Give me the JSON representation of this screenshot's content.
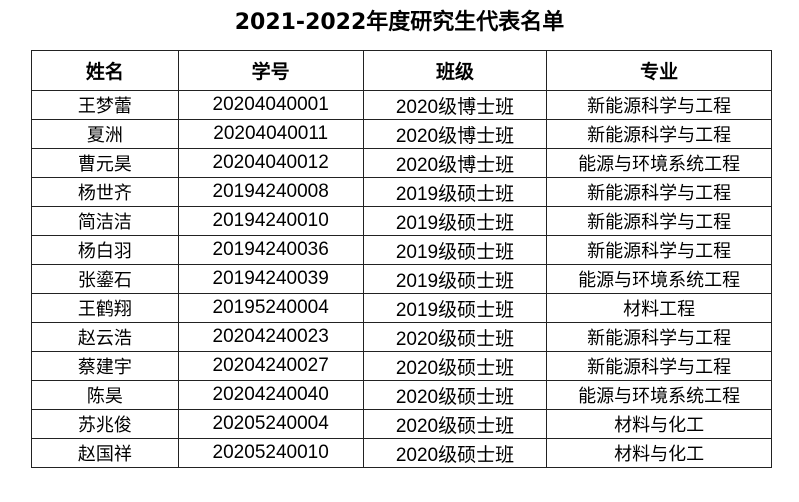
{
  "title": "2021-2022年度研究生代表名单",
  "headers": [
    "姓名",
    "学号",
    "班级",
    "专业"
  ],
  "rows": [
    [
      "王梦蕾",
      "20204040001",
      "2020级博士班",
      "新能源科学与工程"
    ],
    [
      "夏洲",
      "20204040011",
      "2020级博士班",
      "新能源科学与工程"
    ],
    [
      "曹元昊",
      "20204040012",
      "2020级博士班",
      "能源与环境系统工程"
    ],
    [
      "杨世齐",
      "20194240008",
      "2019级硕士班",
      "新能源科学与工程"
    ],
    [
      "简洁洁",
      "20194240010",
      "2019级硕士班",
      "新能源科学与工程"
    ],
    [
      "杨白羽",
      "20194240036",
      "2019级硕士班",
      "新能源科学与工程"
    ],
    [
      "张鎏石",
      "20194240039",
      "2019级硕士班",
      "能源与环境系统工程"
    ],
    [
      "王鹤翔",
      "20195240004",
      "2019级硕士班",
      "材料工程"
    ],
    [
      "赵云浩",
      "20204240023",
      "2020级硕士班",
      "新能源科学与工程"
    ],
    [
      "蔡建宇",
      "20204240027",
      "2020级硕士班",
      "新能源科学与工程"
    ],
    [
      "陈昊",
      "20204240040",
      "2020级硕士班",
      "能源与环境系统工程"
    ],
    [
      "苏兆俊",
      "20205240004",
      "2020级硕士班",
      "材料与化工"
    ],
    [
      "赵国祥",
      "20205240010",
      "2020级硕士班",
      "材料与化工"
    ]
  ]
}
